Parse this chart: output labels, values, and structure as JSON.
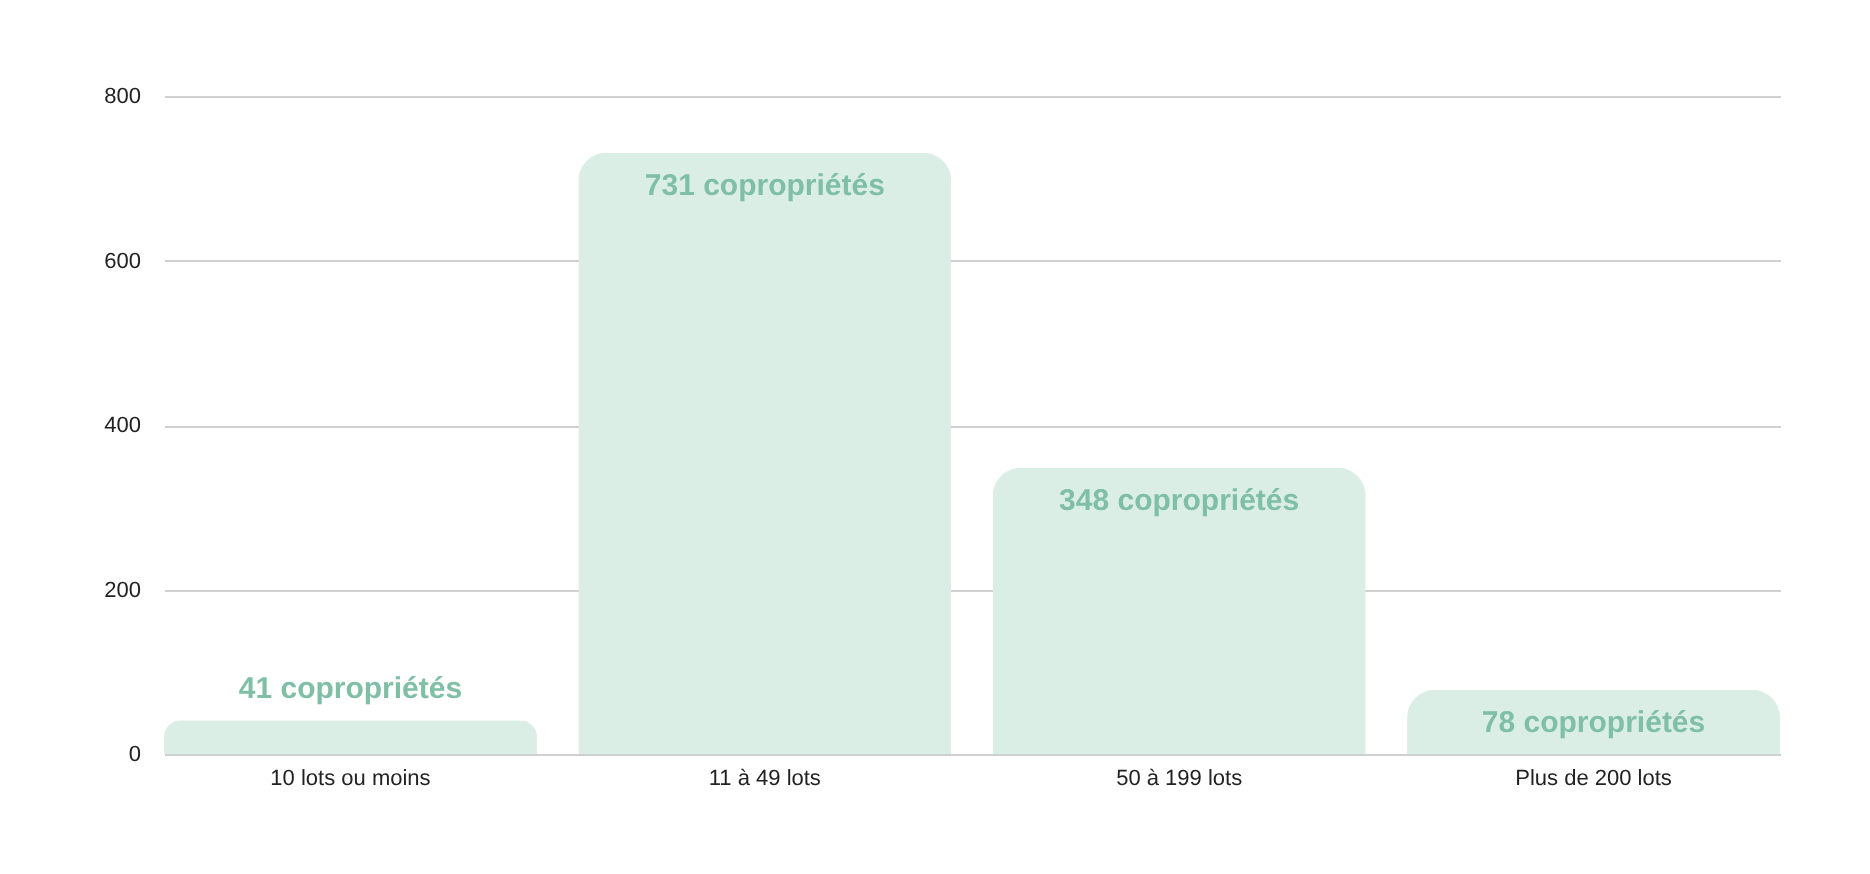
{
  "chart_data": {
    "type": "bar",
    "categories": [
      "10 lots ou moins",
      "11 à 49 lots",
      "50 à 199 lots",
      "Plus de 200 lots"
    ],
    "values": [
      41,
      731,
      348,
      78
    ],
    "color": "#dbeee6",
    "value_labels": [
      "41 copropriétés",
      "731  copropriétés",
      "348 copropriétés",
      "78 copropriétés"
    ],
    "ylim": [
      0,
      800
    ],
    "yticks": [
      0,
      200,
      400,
      600,
      800
    ],
    "grid": "y"
  }
}
